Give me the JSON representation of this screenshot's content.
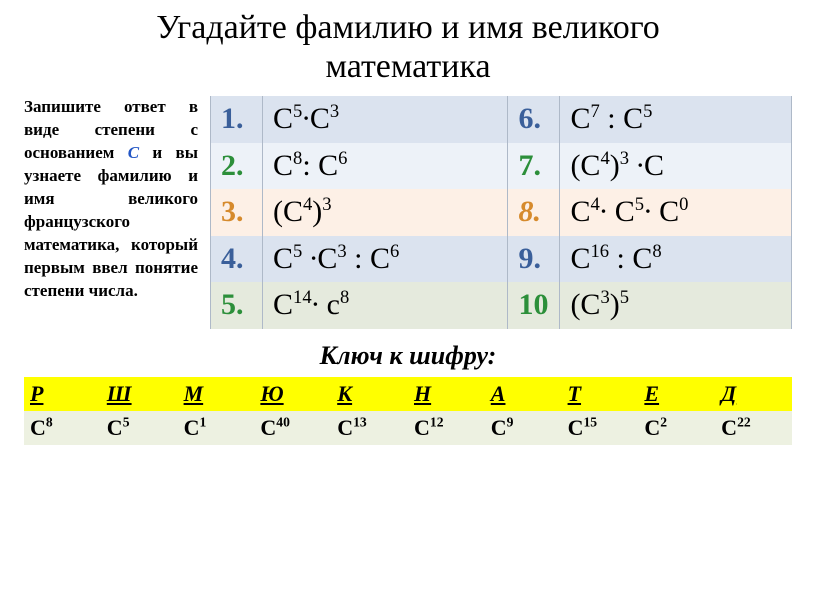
{
  "title_l1": "Угадайте фамилию и имя великого",
  "title_l2": "математика",
  "instr_before": "Запишите ответ в виде степени с основанием ",
  "instr_c": "С",
  "instr_after": " и вы узнаете фамилию и имя великого французского математика, который первым ввел понятие степени числа.",
  "mt": {
    "r1": {
      "n1": "1.",
      "e1": "С<span class='exp'>5</span>∙С<span class='exp'>3</span>",
      "n2": "6.",
      "e2": "С<span class='exp'>7</span> : С<span class='exp'>5</span>"
    },
    "r2": {
      "n1": "2.",
      "e1": "С<span class='exp'>8</span>: С<span class='exp'>6</span>",
      "n2": "7.",
      "e2": "(С<span class='exp'>4</span>)<span class='exp'>3</span> ∙С"
    },
    "r3": {
      "n1": "3.",
      "e1": "(С<span class='exp'>4</span>)<span class='exp'>3</span>",
      "n2": "8.",
      "e2": "С<span class='exp'>4</span>∙ С<span class='exp'>5</span>∙ С<span class='exp'>0</span>"
    },
    "r4": {
      "n1": "4.",
      "e1": "С<span class='exp'>5</span> ∙С<span class='exp'>3</span> : С<span class='exp'>6</span>",
      "n2": "9.",
      "e2": "С<span class='exp'>16</span> : С<span class='exp'>8</span>"
    },
    "r5": {
      "n1": "5.",
      "e1": "С<span class='exp'>14</span>∙ с<span class='exp'>8</span>",
      "n2": "10",
      "e2": " (С<span class='exp'>3</span>)<span class='exp'>5</span>"
    }
  },
  "key_title": "Ключ к шифру:",
  "key_letters": [
    "Р",
    "Ш",
    "М",
    "Ю",
    "К",
    "Н",
    "А",
    "Т",
    "Е",
    "Д"
  ],
  "key_values": [
    "С<span class='kexp'>8</span>",
    "С<span class='kexp'>5</span>",
    "С<span class='kexp'>1</span>",
    "С<span class='kexp'>40</span>",
    "С<span class='kexp'>13</span>",
    "С<span class='kexp'>12</span>",
    "С<span class='kexp'>9</span>",
    "С<span class='kexp'>15</span>",
    "С<span class='kexp'>2</span>",
    "С<span class='kexp'>22</span>"
  ],
  "palette": {
    "row_a": "#dbe3ef",
    "row_b": "#edf2f8",
    "row_c": "#fdf0e6",
    "row_d": "#e5eadd",
    "num_blue": "#3a5f9a",
    "num_green": "#2c8f3a",
    "num_orange": "#d68a2c",
    "key_head": "#ffff00",
    "key_val": "#edf1e1",
    "border": "#aeb9c8"
  }
}
